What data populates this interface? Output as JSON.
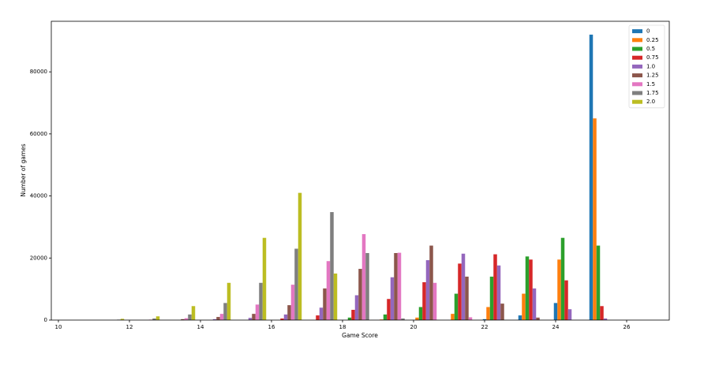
{
  "chart_data": {
    "type": "bar",
    "x_label": "Game Score",
    "y_label": "Number of games",
    "x": [
      11,
      12,
      13,
      14,
      15,
      16,
      17,
      18,
      19,
      20,
      21,
      22,
      23,
      24,
      25
    ],
    "xlim": [
      9.8,
      27.2
    ],
    "xticks": [
      10,
      12,
      14,
      16,
      18,
      20,
      22,
      24,
      26
    ],
    "ylim": [
      0,
      96300
    ],
    "yticks": [
      0,
      20000,
      40000,
      60000,
      80000
    ],
    "legend": "upper right",
    "series": [
      {
        "name": "0",
        "color": "#1f77b4",
        "values": [
          0,
          0,
          0,
          0,
          0,
          0,
          0,
          0,
          0,
          0,
          0,
          300,
          1500,
          5500,
          92000
        ]
      },
      {
        "name": "0.25",
        "color": "#ff7f0e",
        "values": [
          0,
          0,
          0,
          0,
          0,
          0,
          0,
          0,
          200,
          800,
          2000,
          4200,
          8500,
          19500,
          65000
        ]
      },
      {
        "name": "0.5",
        "color": "#2ca02c",
        "values": [
          0,
          0,
          0,
          0,
          0,
          0,
          0,
          800,
          1800,
          4200,
          8500,
          14000,
          20500,
          26500,
          24000
        ]
      },
      {
        "name": "0.75",
        "color": "#d62728",
        "values": [
          0,
          0,
          0,
          0,
          0,
          500,
          1500,
          3300,
          6800,
          12200,
          18200,
          21200,
          19500,
          12800,
          4500
        ]
      },
      {
        "name": "1.0",
        "color": "#9467bd",
        "values": [
          0,
          0,
          0,
          300,
          700,
          1800,
          4000,
          8000,
          13800,
          19300,
          21400,
          17600,
          10200,
          3500,
          500
        ]
      },
      {
        "name": "1.25",
        "color": "#8c564b",
        "values": [
          0,
          0,
          300,
          1000,
          2000,
          4800,
          10200,
          16500,
          21600,
          24000,
          14000,
          5300,
          800,
          0,
          0
        ]
      },
      {
        "name": "1.5",
        "color": "#e377c2",
        "values": [
          0,
          150,
          600,
          2000,
          5000,
          11400,
          19000,
          27700,
          21700,
          12000,
          900,
          0,
          0,
          0,
          0
        ]
      },
      {
        "name": "1.75",
        "color": "#7f7f7f",
        "values": [
          150,
          500,
          1800,
          5500,
          12000,
          23000,
          34800,
          21600,
          500,
          0,
          0,
          0,
          0,
          0,
          0
        ]
      },
      {
        "name": "2.0",
        "color": "#bcbd22",
        "values": [
          400,
          1200,
          4500,
          12000,
          26500,
          41000,
          15000,
          0,
          0,
          0,
          0,
          0,
          0,
          0,
          0
        ]
      }
    ]
  }
}
